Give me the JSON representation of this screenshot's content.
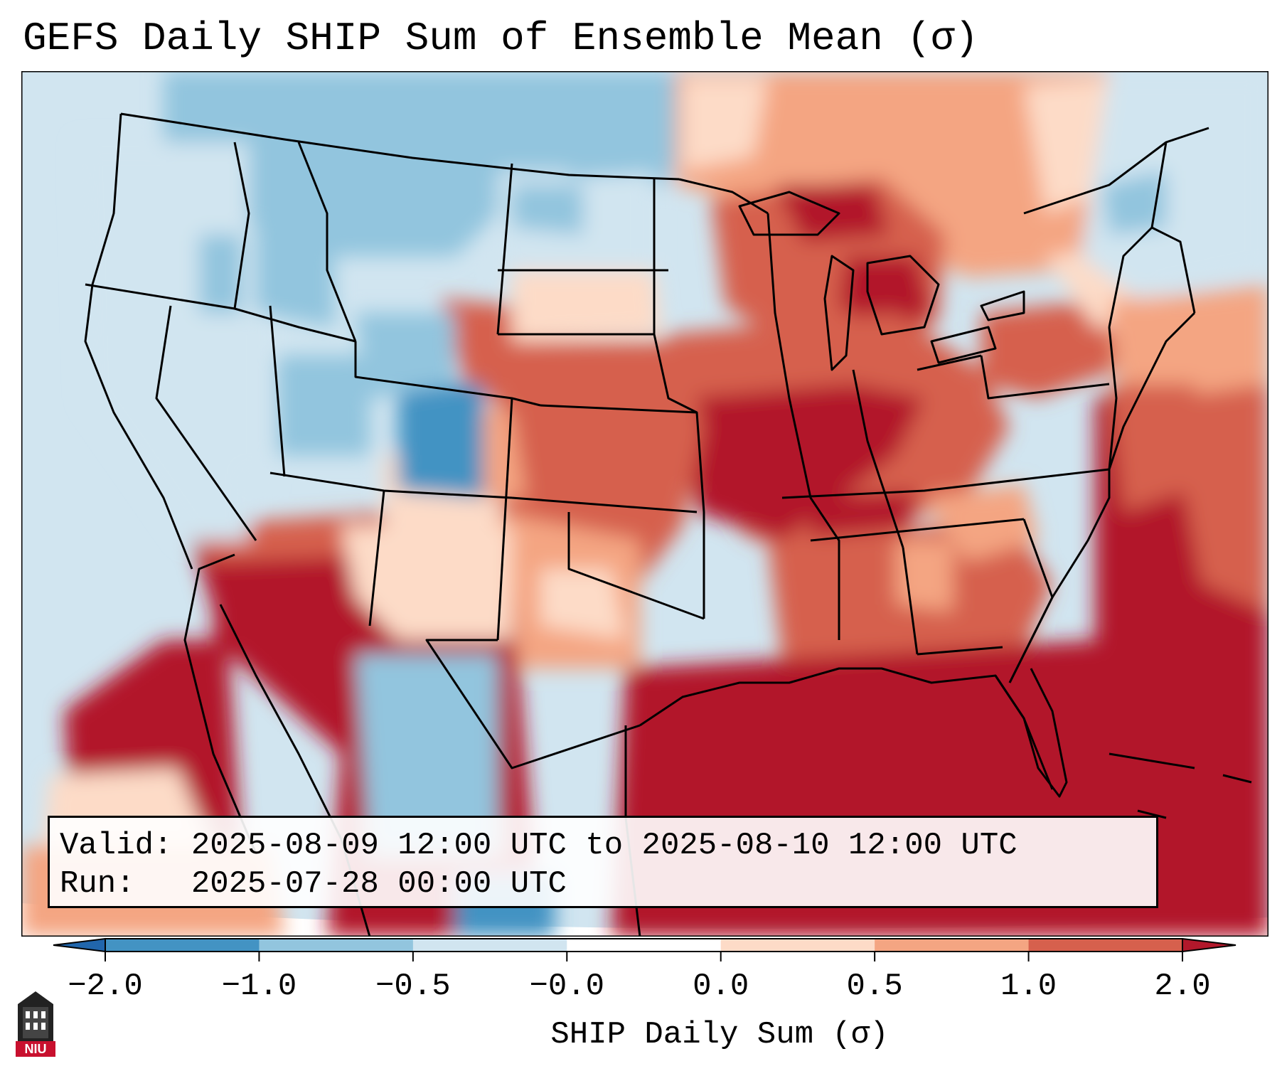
{
  "title": "GEFS Daily SHIP Sum of Ensemble Mean (σ)",
  "info": {
    "valid_label": "Valid:",
    "valid_value": "2025-08-09 12:00 UTC to 2025-08-10 12:00 UTC",
    "run_label": "Run:",
    "run_value": "2025-07-28 00:00 UTC"
  },
  "colorbar": {
    "label": "SHIP Daily Sum (σ)",
    "ticks": [
      "−2.0",
      "−1.0",
      "−0.5",
      "−0.0",
      "0.0",
      "0.5",
      "1.0",
      "2.0"
    ],
    "colors": [
      "#2166ac",
      "#4393c3",
      "#92c5de",
      "#d1e5f0",
      "#ffffff",
      "#fddbc7",
      "#f4a582",
      "#d6604d",
      "#b2182b"
    ],
    "extend": "both"
  },
  "logo": {
    "text": "NIU",
    "color": "#c8102e"
  },
  "map": {
    "projection": "Lambert Conformal, CONUS",
    "ocean_fill": "#d1e5f0"
  }
}
